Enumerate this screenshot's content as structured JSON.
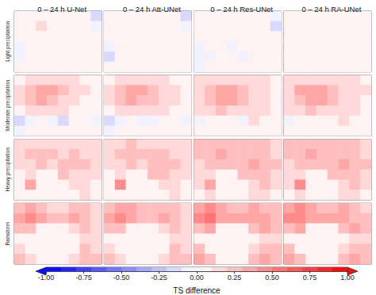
{
  "chart_data": {
    "type": "heatmap",
    "tick_labels": false,
    "columns": [
      "0 – 24 h U-Net",
      "0 – 24 h Att-UNet",
      "0 – 24 h Res-UNet",
      "0 – 24 h RA-UNet"
    ],
    "rows": [
      "Light precipitation",
      "Moderate precipitation",
      "Heavy precipitation",
      "Rainstorm"
    ],
    "panels": [
      [
        [
          [
            0.05,
            0.05,
            0.05,
            0.05,
            0.05,
            0.05,
            0.05,
            -0.15
          ],
          [
            0.05,
            0.05,
            0.15,
            0.05,
            0.05,
            0.05,
            0.05,
            -0.05
          ],
          [
            0.05,
            0.05,
            0.05,
            0.05,
            0.05,
            0.05,
            0.05,
            0
          ],
          [
            -0.05,
            0.05,
            0.05,
            0.05,
            0.05,
            0.05,
            0.05,
            0
          ],
          [
            -0.05,
            0.05,
            0.05,
            0.05,
            0.05,
            0.05,
            0,
            0
          ],
          [
            0,
            0,
            0,
            0,
            0,
            0,
            0,
            0
          ]
        ],
        [
          [
            0.05,
            0.05,
            0.05,
            0.05,
            0.05,
            0.05,
            0.05,
            -0.15
          ],
          [
            0.05,
            0.05,
            0.05,
            0.05,
            0.05,
            0.05,
            0.05,
            -0.05
          ],
          [
            0.05,
            0.05,
            0.05,
            0.05,
            0.05,
            0.05,
            0.05,
            0
          ],
          [
            -0.05,
            0.05,
            0.05,
            0.05,
            0.05,
            0.05,
            0.05,
            0
          ],
          [
            -0.15,
            0.05,
            0.05,
            0.05,
            0,
            0.05,
            0,
            0
          ],
          [
            0,
            0,
            0,
            0,
            0,
            0,
            0,
            0
          ]
        ],
        [
          [
            0,
            0,
            0,
            0.05,
            0,
            0,
            0,
            -0.05
          ],
          [
            0,
            0,
            0.05,
            0,
            0,
            0,
            0.05,
            -0.15
          ],
          [
            0,
            0.05,
            0,
            0,
            0.05,
            0,
            0,
            0
          ],
          [
            -0.05,
            0,
            0,
            -0.05,
            0,
            0,
            0,
            0
          ],
          [
            -0.05,
            -0.05,
            0,
            0,
            -0.05,
            0,
            0,
            0
          ],
          [
            -0.05,
            0,
            0,
            0,
            0,
            0,
            0,
            0
          ]
        ],
        [
          [
            0.05,
            0.05,
            0.05,
            0.05,
            0.05,
            0.05,
            0.05,
            0.05
          ],
          [
            0.05,
            0.05,
            0.05,
            0.05,
            0.05,
            0.05,
            0.05,
            0.05
          ],
          [
            0.05,
            0.05,
            0.05,
            0.05,
            0.05,
            0.05,
            0.05,
            0.05
          ],
          [
            0.05,
            0.05,
            0.05,
            0.05,
            0.05,
            0.05,
            0.05,
            0
          ],
          [
            0,
            0.05,
            0.05,
            0,
            0.05,
            0.05,
            0,
            0
          ],
          [
            0,
            0,
            0,
            0,
            0,
            0,
            0,
            0
          ]
        ]
      ],
      [
        [
          [
            0.05,
            0.1,
            0.15,
            0.15,
            0.1,
            0.1,
            0.05,
            0.05
          ],
          [
            0.1,
            0.25,
            0.35,
            0.3,
            0.2,
            0.1,
            0.1,
            0.05
          ],
          [
            0.1,
            0.2,
            0.3,
            0.25,
            0.15,
            0.1,
            0.05,
            0.05
          ],
          [
            0.05,
            0.1,
            0.15,
            0.15,
            0.1,
            0.05,
            0.05,
            0.05
          ],
          [
            -0.15,
            -0.05,
            0.05,
            -0.05,
            -0.15,
            0.05,
            0.05,
            -0.05
          ],
          [
            -0.05,
            0,
            0,
            0,
            0,
            0.05,
            0,
            0
          ]
        ],
        [
          [
            0.05,
            0.1,
            0.15,
            0.15,
            0.1,
            0.1,
            0.05,
            0.05
          ],
          [
            0.1,
            0.25,
            0.35,
            0.35,
            0.2,
            0.15,
            0.1,
            0.05
          ],
          [
            0.1,
            0.2,
            0.3,
            0.25,
            0.2,
            0.1,
            0.1,
            0.05
          ],
          [
            0.05,
            0.15,
            0.15,
            0.15,
            0.1,
            0.1,
            0.05,
            0.05
          ],
          [
            -0.15,
            -0.05,
            0.05,
            -0.05,
            -0.05,
            0.05,
            0.05,
            -0.05
          ],
          [
            -0.05,
            0,
            0,
            0,
            0,
            0.05,
            0,
            0
          ]
        ],
        [
          [
            0.1,
            0.15,
            0.15,
            0.15,
            0.15,
            0.1,
            0.1,
            0.05
          ],
          [
            0.15,
            0.25,
            0.35,
            0.35,
            0.25,
            0.15,
            0.1,
            0.05
          ],
          [
            0.1,
            0.25,
            0.35,
            0.3,
            0.2,
            0.15,
            0.1,
            0.05
          ],
          [
            0.1,
            0.15,
            0.2,
            0.15,
            0.15,
            0.1,
            0.1,
            0.05
          ],
          [
            -0.05,
            0.05,
            0.05,
            0.05,
            -0.05,
            0.1,
            0.05,
            0
          ],
          [
            0,
            0,
            0,
            0,
            0,
            0.05,
            0.05,
            0
          ]
        ],
        [
          [
            0.1,
            0.15,
            0.15,
            0.15,
            0.15,
            0.1,
            0.1,
            0.05
          ],
          [
            0.15,
            0.3,
            0.35,
            0.35,
            0.25,
            0.15,
            0.1,
            0.1
          ],
          [
            0.15,
            0.25,
            0.35,
            0.3,
            0.2,
            0.15,
            0.1,
            0.05
          ],
          [
            0.1,
            0.15,
            0.2,
            0.15,
            0.15,
            0.1,
            0.1,
            0.05
          ],
          [
            -0.05,
            0.05,
            0.05,
            0.05,
            0.05,
            0.1,
            0.05,
            0
          ],
          [
            0,
            0,
            0,
            0,
            0,
            0.05,
            0.05,
            0
          ]
        ]
      ],
      [
        [
          [
            0.15,
            0.15,
            0.15,
            0.1,
            0.15,
            0.15,
            0.15,
            0.1
          ],
          [
            0.15,
            0.2,
            0.25,
            0.2,
            0.15,
            0.2,
            0.15,
            0.15
          ],
          [
            0.1,
            0.15,
            0.2,
            0.15,
            0.2,
            0.25,
            0.2,
            0.15
          ],
          [
            0.05,
            0.1,
            0.05,
            0.05,
            0.2,
            0.15,
            0.15,
            0.1
          ],
          [
            0.05,
            0.35,
            0,
            0,
            0.05,
            0.1,
            0.15,
            0.05
          ],
          [
            0.05,
            0.05,
            0,
            0,
            0,
            0.05,
            0.1,
            0.05
          ]
        ],
        [
          [
            0.15,
            0.15,
            0.2,
            0.15,
            0.15,
            0.15,
            0.15,
            0.1
          ],
          [
            0.15,
            0.2,
            0.25,
            0.2,
            0.2,
            0.2,
            0.15,
            0.15
          ],
          [
            0.15,
            0.15,
            0.2,
            0.15,
            0.2,
            0.25,
            0.2,
            0.15
          ],
          [
            0.05,
            0.1,
            0.05,
            0.05,
            0.2,
            0.2,
            0.15,
            0.1
          ],
          [
            0.05,
            0.45,
            0,
            0,
            0.05,
            0.15,
            0.15,
            0.05
          ],
          [
            0.05,
            0.05,
            0,
            0,
            0,
            0.05,
            0.1,
            0.05
          ]
        ],
        [
          [
            0.2,
            0.2,
            0.25,
            0.2,
            0.2,
            0.2,
            0.2,
            0.15
          ],
          [
            0.2,
            0.25,
            0.3,
            0.25,
            0.25,
            0.25,
            0.2,
            0.15
          ],
          [
            0.15,
            0.2,
            0.25,
            0.2,
            0.25,
            0.3,
            0.25,
            0.2
          ],
          [
            0.1,
            0.15,
            0.05,
            0.05,
            0.25,
            0.2,
            0.2,
            0.15
          ],
          [
            0.1,
            0.35,
            0,
            0,
            0.05,
            0.15,
            0.2,
            0.1
          ],
          [
            0.05,
            0.1,
            0,
            0,
            0.05,
            0.1,
            0.15,
            0.05
          ]
        ],
        [
          [
            0.2,
            0.2,
            0.25,
            0.2,
            0.2,
            0.2,
            0.2,
            0.15
          ],
          [
            0.2,
            0.25,
            0.3,
            0.25,
            0.25,
            0.25,
            0.2,
            0.15
          ],
          [
            0.15,
            0.2,
            0.25,
            0.2,
            0.25,
            0.3,
            0.25,
            0.2
          ],
          [
            0.1,
            0.15,
            0.05,
            0.05,
            0.25,
            0.25,
            0.2,
            0.15
          ],
          [
            0.1,
            0.45,
            0,
            0,
            0.05,
            0.15,
            0.2,
            0.1
          ],
          [
            0.05,
            0.1,
            0,
            0,
            0.05,
            0.1,
            0.15,
            0.05
          ]
        ]
      ],
      [
        [
          [
            0.25,
            0.35,
            0.25,
            0.15,
            0.15,
            0.2,
            0.2,
            0.1
          ],
          [
            0.35,
            0.4,
            0.3,
            0.2,
            0.25,
            0.3,
            0.2,
            0.15
          ],
          [
            0.2,
            0.25,
            0.05,
            0,
            0,
            0.15,
            0.25,
            0.15
          ],
          [
            0.05,
            0.05,
            0,
            0,
            0,
            0.05,
            0.1,
            0.1
          ],
          [
            0.15,
            0,
            0,
            0,
            0,
            0.05,
            0.2,
            0.15
          ],
          [
            0.25,
            0.15,
            0,
            0,
            0.05,
            0.15,
            0.25,
            0.2
          ]
        ],
        [
          [
            0.25,
            0.35,
            0.3,
            0.2,
            0.2,
            0.25,
            0.2,
            0.15
          ],
          [
            0.35,
            0.45,
            0.3,
            0.25,
            0.25,
            0.3,
            0.25,
            0.15
          ],
          [
            0.2,
            0.25,
            0.05,
            0,
            0,
            0.15,
            0.25,
            0.15
          ],
          [
            0.05,
            0.05,
            0,
            0,
            0,
            0.05,
            0.15,
            0.1
          ],
          [
            0.15,
            0,
            0,
            0,
            0,
            0.05,
            0.2,
            0.15
          ],
          [
            0.25,
            0.15,
            0,
            0,
            0.05,
            0.15,
            0.25,
            0.2
          ]
        ],
        [
          [
            0.35,
            0.45,
            0.35,
            0.25,
            0.25,
            0.3,
            0.25,
            0.2
          ],
          [
            0.45,
            0.5,
            0.35,
            0.3,
            0.3,
            0.35,
            0.3,
            0.2
          ],
          [
            0.25,
            0.3,
            0.05,
            0,
            0,
            0.2,
            0.3,
            0.2
          ],
          [
            0.05,
            0.05,
            0,
            0,
            0,
            0.05,
            0.15,
            0.15
          ],
          [
            0.2,
            0,
            0,
            0,
            0,
            0.1,
            0.25,
            0.2
          ],
          [
            0.3,
            0.2,
            0,
            0,
            0.05,
            0.2,
            0.3,
            0.25
          ]
        ],
        [
          [
            0.3,
            0.4,
            0.35,
            0.25,
            0.25,
            0.3,
            0.25,
            0.15
          ],
          [
            0.4,
            0.45,
            0.35,
            0.3,
            0.3,
            0.35,
            0.25,
            0.2
          ],
          [
            0.25,
            0.3,
            0.05,
            0,
            0,
            0.2,
            0.3,
            0.2
          ],
          [
            0.05,
            0.05,
            0,
            0,
            0,
            0.05,
            0.15,
            0.1
          ],
          [
            0.2,
            0,
            0,
            0,
            0,
            0.1,
            0.25,
            0.2
          ],
          [
            0.3,
            0.2,
            0,
            0,
            0.05,
            0.2,
            0.3,
            0.25
          ]
        ]
      ]
    ],
    "colorbar": {
      "label": "TS difference",
      "range": [
        -1,
        1
      ],
      "ticks": [
        {
          "value": -1,
          "label": "-1.00"
        },
        {
          "value": -0.75,
          "label": "-0.75"
        },
        {
          "value": -0.5,
          "label": "-0.50"
        },
        {
          "value": -0.25,
          "label": "-0.25"
        },
        {
          "value": 0,
          "label": "0.00"
        },
        {
          "value": 0.25,
          "label": "0.25"
        },
        {
          "value": 0.5,
          "label": "0.50"
        },
        {
          "value": 0.75,
          "label": "0.75"
        },
        {
          "value": 1,
          "label": "1.00"
        }
      ],
      "levels": [
        -1,
        -0.9,
        -0.8,
        -0.7,
        -0.6,
        -0.5,
        -0.4,
        -0.3,
        -0.2,
        -0.1,
        0,
        0.1,
        0.2,
        0.3,
        0.4,
        0.5,
        0.6,
        0.7,
        0.8,
        0.9,
        1
      ],
      "colors": [
        "#0000ff",
        "#ffffff",
        "#ff0000"
      ]
    }
  }
}
